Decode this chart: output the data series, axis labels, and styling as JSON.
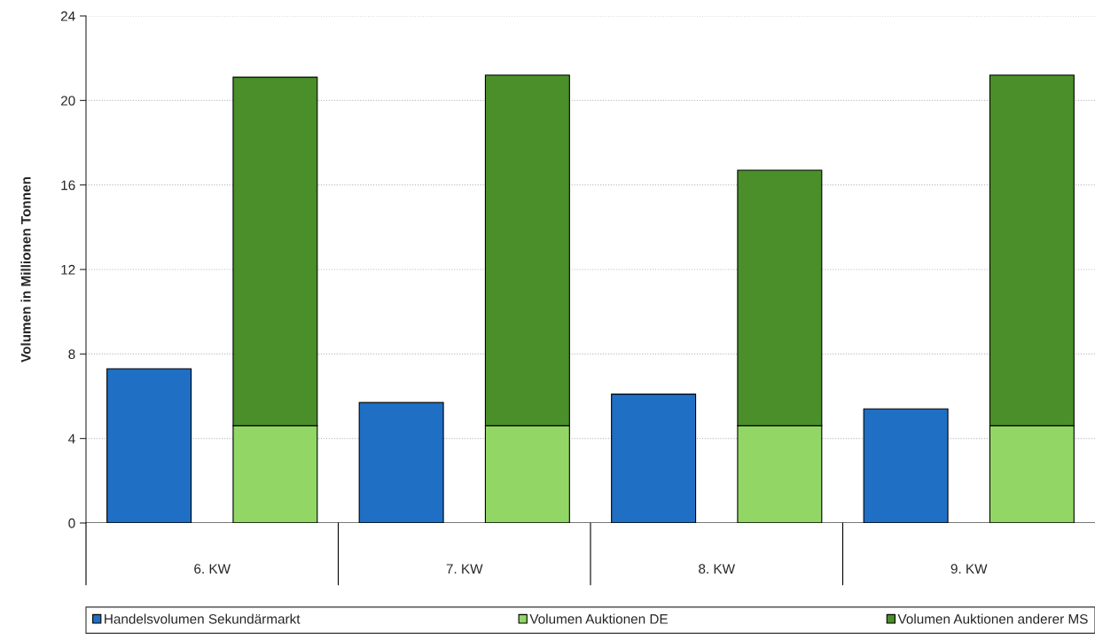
{
  "chart_data": {
    "type": "bar",
    "ylabel": "Volumen in Millionen Tonnen",
    "categories": [
      null,
      null,
      null,
      null,
      null,
      null,
      null,
      null
    ],
    "stacked": true,
    "series": [
      {
        "name": "Handelsvolumen Sekundärmarkt",
        "color": "#1f6fc5",
        "values": [
          7.3,
          null,
          5.7,
          null,
          6.1,
          null,
          5.4,
          null
        ]
      },
      {
        "name": "Volumen Auktionen DE",
        "color": "#92d766",
        "values": [
          null,
          4.6,
          null,
          4.6,
          null,
          4.6,
          null,
          4.6
        ]
      },
      {
        "name": "Volumen Auktionen anderer MS",
        "color": "#4a8f2a",
        "values": [
          null,
          16.5,
          null,
          16.6,
          null,
          12.1,
          null,
          16.6
        ]
      }
    ],
    "annotations": [
      "6. KW",
      "7. KW",
      "8. KW",
      "9. KW"
    ],
    "ylim": [
      0,
      24
    ],
    "yticks": [
      0,
      4,
      8,
      12,
      16,
      20,
      24
    ],
    "grid": "y",
    "legend": "bottom"
  }
}
